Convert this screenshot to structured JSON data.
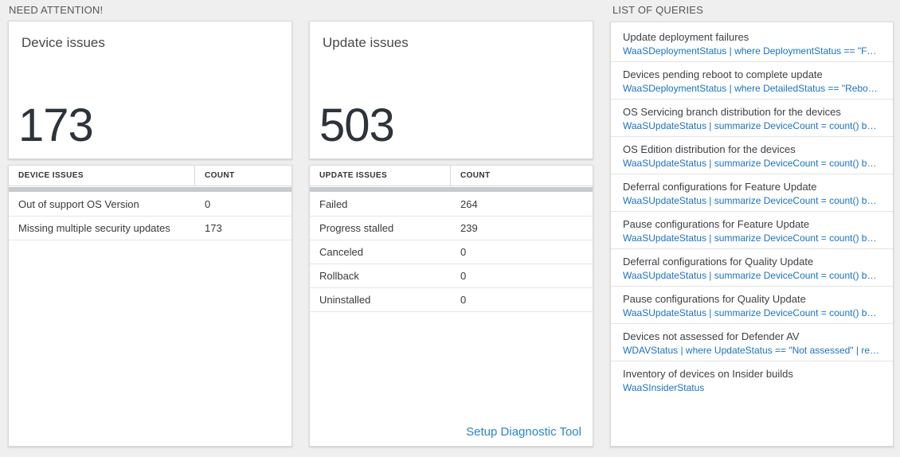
{
  "sections": {
    "need_attention": "NEED ATTENTION!",
    "list_of_queries": "LIST OF QUERIES"
  },
  "device_panel": {
    "title": "Device issues",
    "count": "173",
    "table": {
      "headers": [
        "DEVICE ISSUES",
        "COUNT"
      ],
      "rows": [
        {
          "label": "Out of support OS Version",
          "value": "0"
        },
        {
          "label": "Missing multiple security updates",
          "value": "173"
        }
      ]
    }
  },
  "update_panel": {
    "title": "Update issues",
    "count": "503",
    "table": {
      "headers": [
        "UPDATE ISSUES",
        "COUNT"
      ],
      "rows": [
        {
          "label": "Failed",
          "value": "264"
        },
        {
          "label": "Progress stalled",
          "value": "239"
        },
        {
          "label": "Canceled",
          "value": "0"
        },
        {
          "label": "Rollback",
          "value": "0"
        },
        {
          "label": "Uninstalled",
          "value": "0"
        }
      ]
    },
    "link": "Setup Diagnostic Tool"
  },
  "queries": [
    {
      "title": "Update deployment failures",
      "query": "WaaSDeploymentStatus | where DeploymentStatus == \"Failed\" |..."
    },
    {
      "title": "Devices pending reboot to complete update",
      "query": "WaaSDeploymentStatus | where DetailedStatus == \"Reboot pend..."
    },
    {
      "title": "OS Servicing branch distribution for the devices",
      "query": "WaaSUpdateStatus | summarize DeviceCount = count() by OSSer..."
    },
    {
      "title": "OS Edition distribution for the devices",
      "query": "WaaSUpdateStatus | summarize DeviceCount = count() by OSEdit..."
    },
    {
      "title": "Deferral configurations for Feature Update",
      "query": "WaaSUpdateStatus | summarize DeviceCount = count() by Featur..."
    },
    {
      "title": "Pause configurations for Feature Update",
      "query": "WaaSUpdateStatus | summarize DeviceCount = count() by Featur..."
    },
    {
      "title": "Deferral configurations for Quality Update",
      "query": "WaaSUpdateStatus | summarize DeviceCount = count() by Qualit..."
    },
    {
      "title": "Pause configurations for Quality Update",
      "query": "WaaSUpdateStatus | summarize DeviceCount = count() by Qualit..."
    },
    {
      "title": "Devices not assessed for Defender AV",
      "query": "WDAVStatus | where UpdateStatus == \"Not assessed\" | render ta..."
    },
    {
      "title": "Inventory of devices on Insider builds",
      "query": "WaaSInsiderStatus"
    }
  ],
  "colors": {
    "background": "#efefef",
    "panel": "#ffffff",
    "query_blue": "#1b72c0",
    "link_blue": "#2b85c6",
    "number_text": "#2d333b",
    "scrollbar": "#c7cbcf"
  }
}
